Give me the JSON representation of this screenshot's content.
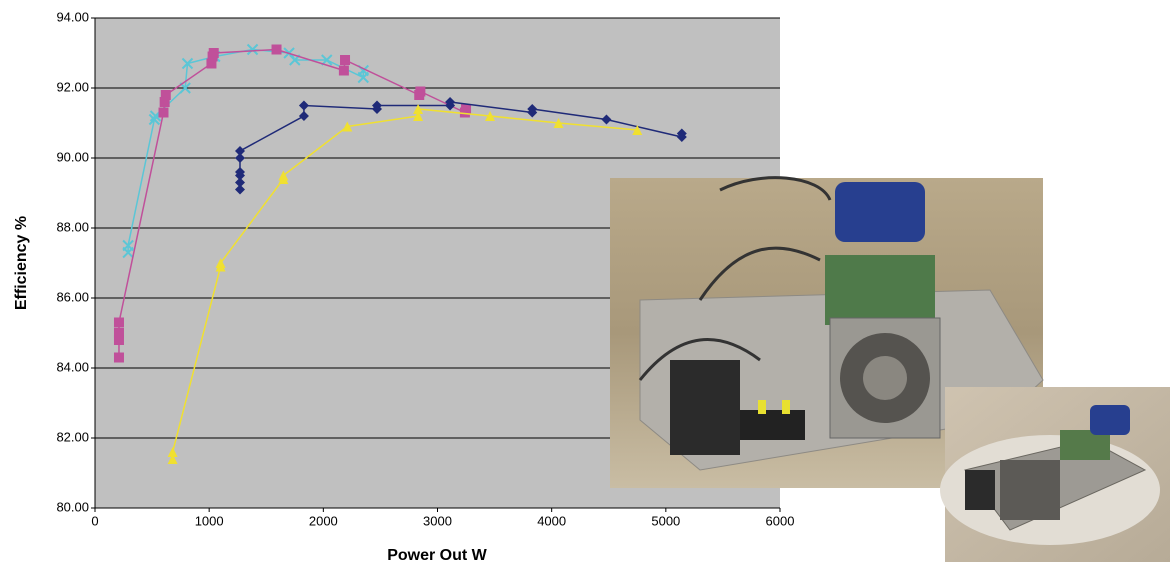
{
  "chart_data": {
    "type": "scatter",
    "xlabel": "Power Out W",
    "ylabel": "Efficiency %",
    "xlim": [
      0,
      6000
    ],
    "xticks": [
      0,
      1000,
      2000,
      3000,
      4000,
      5000,
      6000
    ],
    "ylim": [
      80,
      94
    ],
    "yticks": [
      {
        "value": 80,
        "label": "80.00"
      },
      {
        "value": 82,
        "label": "82.00"
      },
      {
        "value": 84,
        "label": "84.00"
      },
      {
        "value": 86,
        "label": "86.00"
      },
      {
        "value": 88,
        "label": "88.00"
      },
      {
        "value": 90,
        "label": "90.00"
      },
      {
        "value": 92,
        "label": "92.00"
      },
      {
        "value": 94,
        "label": "94.00"
      }
    ],
    "grid": true,
    "series": [
      {
        "color": "#5bc6d6",
        "marker": "x",
        "x": [
          290,
          290,
          520,
          530,
          790,
          810,
          1050,
          1380,
          1700,
          1750,
          2030,
          2350,
          2350
        ],
        "values": [
          87.3,
          87.5,
          91.1,
          91.2,
          92.0,
          92.7,
          92.9,
          93.1,
          93.0,
          92.8,
          92.8,
          92.3,
          92.5
        ]
      },
      {
        "color": "#c0509a",
        "marker": "square",
        "x": [
          210,
          210,
          210,
          210,
          600,
          610,
          620,
          1020,
          1030,
          1040,
          1590,
          2180,
          2190,
          2840,
          2850,
          3240,
          3250
        ],
        "values": [
          84.3,
          84.8,
          85.0,
          85.3,
          91.3,
          91.6,
          91.8,
          92.7,
          92.9,
          93.0,
          93.1,
          92.5,
          92.8,
          91.8,
          91.9,
          91.3,
          91.4
        ]
      },
      {
        "color": "#1f2a78",
        "marker": "diamond",
        "x": [
          1270,
          1270,
          1270,
          1270,
          1270,
          1270,
          1830,
          1830,
          2470,
          2470,
          3110,
          3110,
          3830,
          3830,
          4480,
          5140,
          5140
        ],
        "values": [
          89.1,
          89.3,
          89.5,
          89.6,
          90.0,
          90.2,
          91.2,
          91.5,
          91.4,
          91.5,
          91.5,
          91.6,
          91.3,
          91.4,
          91.1,
          90.6,
          90.7
        ]
      },
      {
        "color": "#f0e030",
        "marker": "triangle",
        "x": [
          680,
          680,
          1100,
          1100,
          1650,
          1650,
          2210,
          2830,
          2830,
          3460,
          4060,
          4750
        ],
        "values": [
          81.4,
          81.6,
          86.9,
          87.0,
          89.4,
          89.5,
          90.9,
          91.2,
          91.4,
          91.2,
          91.0,
          90.8
        ]
      }
    ]
  }
}
